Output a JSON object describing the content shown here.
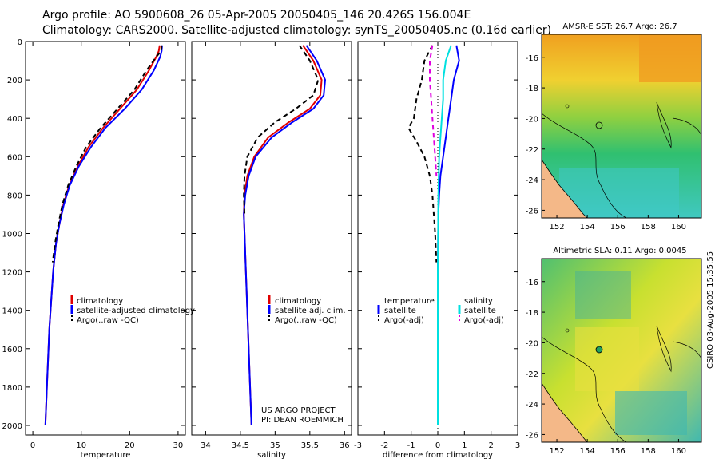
{
  "header": {
    "line1": "Argo profile: AO 5900608_26 05-Apr-2005 20050405_146 20.426S 156.004E",
    "line2": "Climatology: CARS2000. Satellite-adjusted climatology: synTS_20050405.nc (0.16d earlier)"
  },
  "credit": {
    "line1": "US ARGO PROJECT",
    "line2": "PI: DEAN ROEMMICH"
  },
  "timestamp": "CSIRO 03-Aug-2005 15:35:55",
  "colors": {
    "climatology": "#e00000",
    "satellite": "#0000ff",
    "argo": "#000000",
    "salinity_sat": "#00e0e0",
    "salinity_argo": "#e000e0"
  },
  "chart_data": [
    {
      "type": "line",
      "title": "",
      "xlabel": "temperature",
      "ylabel": "",
      "xlim": [
        -1.5,
        31.5
      ],
      "ylim": [
        2050,
        0
      ],
      "xticks": [
        0,
        10,
        20,
        30
      ],
      "yticks": [
        0,
        200,
        400,
        600,
        800,
        1000,
        1200,
        1400,
        1600,
        1800,
        2000
      ],
      "legend_position": "center-right",
      "series": [
        {
          "name": "climatology",
          "style": "solid",
          "color": "#e00000",
          "x": [
            26.2,
            26.0,
            25.5,
            24.0,
            21.5,
            18.0,
            14.5,
            11.5,
            9.3,
            7.5,
            6.3,
            5.5,
            4.8,
            4.2,
            3.4,
            2.9,
            2.6
          ],
          "y": [
            20,
            50,
            80,
            150,
            250,
            350,
            450,
            550,
            650,
            750,
            850,
            950,
            1050,
            1200,
            1500,
            1800,
            2000
          ]
        },
        {
          "name": "satellite-adjusted climatology",
          "style": "solid",
          "color": "#0000ff",
          "x": [
            26.7,
            26.6,
            26.3,
            25.0,
            22.5,
            19.0,
            15.0,
            12.0,
            9.5,
            7.6,
            6.4,
            5.5,
            4.8,
            4.2,
            3.4,
            2.9,
            2.6
          ],
          "y": [
            20,
            50,
            80,
            150,
            250,
            350,
            450,
            550,
            650,
            750,
            850,
            950,
            1050,
            1200,
            1500,
            1800,
            2000
          ]
        },
        {
          "name": "Argo(..raw -QC)",
          "style": "dashed",
          "color": "#000000",
          "x": [
            26.6,
            26.5,
            25.5,
            23.5,
            21.0,
            17.5,
            14.0,
            11.0,
            9.0,
            7.3,
            6.1,
            5.3,
            4.6,
            4.1
          ],
          "y": [
            20,
            50,
            80,
            150,
            250,
            350,
            450,
            550,
            650,
            750,
            850,
            950,
            1050,
            1150
          ]
        }
      ]
    },
    {
      "type": "line",
      "title": "",
      "xlabel": "salinity",
      "ylabel": "",
      "xlim": [
        33.8,
        36.1
      ],
      "ylim": [
        2050,
        0
      ],
      "xticks": [
        34,
        34.5,
        35,
        35.5,
        36
      ],
      "legend_position": "center-right",
      "series": [
        {
          "name": "climatology",
          "style": "solid",
          "color": "#e00000",
          "x": [
            35.4,
            35.55,
            35.67,
            35.65,
            35.5,
            35.2,
            34.9,
            34.7,
            34.6,
            34.56,
            34.55,
            34.56,
            34.58,
            34.62,
            34.66
          ],
          "y": [
            20,
            100,
            200,
            280,
            350,
            420,
            500,
            600,
            700,
            800,
            900,
            1000,
            1200,
            1600,
            2000
          ]
        },
        {
          "name": "satellite adj. clim.",
          "style": "solid",
          "color": "#0000ff",
          "x": [
            35.45,
            35.6,
            35.72,
            35.7,
            35.55,
            35.25,
            34.95,
            34.72,
            34.62,
            34.57,
            34.55,
            34.56,
            34.58,
            34.62,
            34.66
          ],
          "y": [
            20,
            100,
            200,
            280,
            350,
            420,
            500,
            600,
            700,
            800,
            900,
            1000,
            1200,
            1600,
            2000
          ]
        },
        {
          "name": "Argo(..raw -QC)",
          "style": "dashed",
          "color": "#000000",
          "x": [
            35.35,
            35.5,
            35.62,
            35.55,
            35.3,
            35.0,
            34.75,
            34.6,
            34.56,
            34.55,
            34.56
          ],
          "y": [
            20,
            100,
            200,
            280,
            350,
            420,
            500,
            600,
            700,
            800,
            900
          ]
        }
      ]
    },
    {
      "type": "line",
      "title": "",
      "xlabel": "difference from climatology",
      "ylabel": "",
      "xlim": [
        -3,
        3
      ],
      "ylim": [
        2050,
        0
      ],
      "xticks": [
        -3,
        -2,
        -1,
        0,
        1,
        2,
        3
      ],
      "legend_position": "center",
      "legend_groups": [
        "temperature",
        "salinity"
      ],
      "series": [
        {
          "name": "satellite",
          "group": "temperature",
          "style": "solid",
          "color": "#0000ff",
          "x": [
            0.7,
            0.8,
            0.6,
            0.5,
            0.4,
            0.3,
            0.2,
            0.1,
            0.05,
            0.02,
            0.0,
            0.0
          ],
          "y": [
            20,
            100,
            200,
            300,
            400,
            500,
            600,
            700,
            800,
            900,
            1200,
            2000
          ]
        },
        {
          "name": "Argo(-adj)",
          "group": "temperature",
          "style": "dashed",
          "color": "#000000",
          "x": [
            -0.2,
            -0.5,
            -0.6,
            -0.8,
            -0.9,
            -1.1,
            -0.8,
            -0.5,
            -0.3,
            -0.2,
            -0.1,
            -0.05
          ],
          "y": [
            20,
            100,
            200,
            300,
            400,
            450,
            520,
            600,
            700,
            800,
            1000,
            1150
          ]
        },
        {
          "name": "satellite",
          "group": "salinity",
          "style": "solid",
          "color": "#00e0e0",
          "x": [
            0.5,
            0.3,
            0.2,
            0.2,
            0.15,
            0.1,
            0.05,
            0.02,
            0.0,
            0.0
          ],
          "y": [
            20,
            100,
            200,
            300,
            400,
            500,
            600,
            800,
            1200,
            2000
          ]
        },
        {
          "name": "Argo(-adj)",
          "group": "salinity",
          "style": "dashed",
          "color": "#e000e0",
          "x": [
            -0.2,
            -0.3,
            -0.3,
            -0.25,
            -0.2,
            -0.15,
            -0.1,
            -0.05
          ],
          "y": [
            20,
            100,
            200,
            300,
            400,
            500,
            600,
            700
          ]
        }
      ]
    },
    {
      "type": "heatmap",
      "title": "AMSR-E SST: 26.7 Argo: 26.7",
      "xlim": [
        151,
        161.5
      ],
      "ylim": [
        -26.5,
        -14.5
      ],
      "xticks": [
        152,
        154,
        156,
        158,
        160
      ],
      "yticks": [
        -16,
        -18,
        -20,
        -22,
        -24,
        -26
      ]
    },
    {
      "type": "heatmap",
      "title": "Altimetric SLA: 0.11 Argo: 0.0045",
      "xlim": [
        151,
        161.5
      ],
      "ylim": [
        -26.5,
        -14.5
      ],
      "xticks": [
        152,
        154,
        156,
        158,
        160
      ],
      "yticks": [
        -16,
        -18,
        -20,
        -22,
        -24,
        -26
      ]
    }
  ]
}
